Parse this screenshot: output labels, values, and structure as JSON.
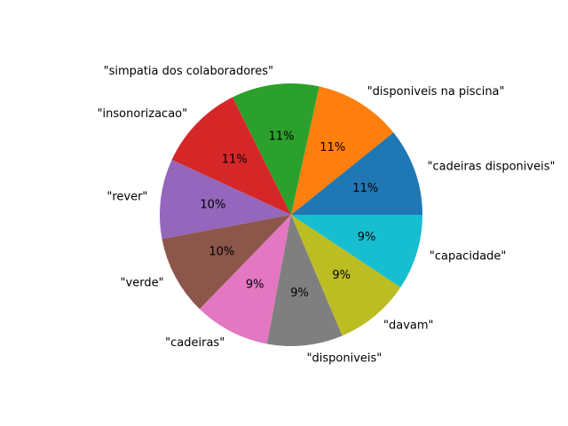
{
  "chart_data": {
    "type": "pie",
    "title": "",
    "start_angle_deg": 0,
    "direction": "counterclockwise",
    "slices": [
      {
        "label": "\"cadeiras disponiveis\"",
        "value": 11,
        "pct_label": "11%",
        "color": "#1f77b4"
      },
      {
        "label": "\"disponiveis na piscina\"",
        "value": 11,
        "pct_label": "11%",
        "color": "#ff7f0e"
      },
      {
        "label": "\"simpatia dos colaboradores\"",
        "value": 11,
        "pct_label": "11%",
        "color": "#2ca02c"
      },
      {
        "label": "\"insonorizacao\"",
        "value": 11,
        "pct_label": "11%",
        "color": "#d62728"
      },
      {
        "label": "\"rever\"",
        "value": 10,
        "pct_label": "10%",
        "color": "#9467bd"
      },
      {
        "label": "\"verde\"",
        "value": 10,
        "pct_label": "10%",
        "color": "#8c564b"
      },
      {
        "label": "\"cadeiras\"",
        "value": 9.5,
        "pct_label": "9%",
        "color": "#e377c2"
      },
      {
        "label": "\"disponiveis\"",
        "value": 9.5,
        "pct_label": "9%",
        "color": "#7f7f7f"
      },
      {
        "label": "\"davam\"",
        "value": 9.5,
        "pct_label": "9%",
        "color": "#bcbd22"
      },
      {
        "label": "\"capacidade\"",
        "value": 9.5,
        "pct_label": "9%",
        "color": "#17becf"
      }
    ]
  }
}
